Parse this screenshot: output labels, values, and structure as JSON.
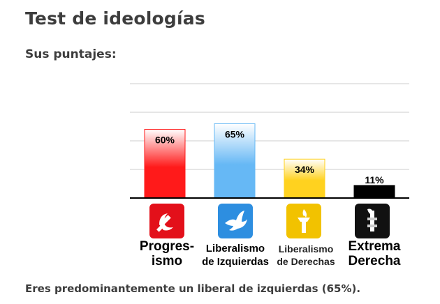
{
  "page": {
    "title": "Test de ideologías",
    "subtitle": "Sus puntajes:",
    "result_text": "Eres predominantemente un liberal de izquierdas (65%)."
  },
  "chart_data": {
    "type": "bar",
    "categories": [
      "Progres-ismo",
      "Liberalismo de Izquierdas",
      "Liberalismo de Derechas",
      "Extrema Derecha"
    ],
    "values": [
      60,
      65,
      34,
      11
    ],
    "value_labels": [
      "60%",
      "65%",
      "34%",
      "11%"
    ],
    "ylim": [
      0,
      100
    ],
    "grid": true,
    "colors": [
      "#ff1a1a",
      "#66b8f5",
      "#ffd21f",
      "#000000"
    ],
    "icons": [
      "hammer-sickle-icon",
      "dove-icon",
      "torch-icon",
      "fasces-icon"
    ]
  },
  "labels": {
    "cat0_line1": "Progres-",
    "cat0_line2": "ismo",
    "cat1_line1": "Liberalismo",
    "cat1_line2": "de Izquierdas",
    "cat2_line1": "Liberalismo",
    "cat2_line2": "de Derechas",
    "cat3_line1": "Extrema",
    "cat3_line2": "Derecha"
  }
}
